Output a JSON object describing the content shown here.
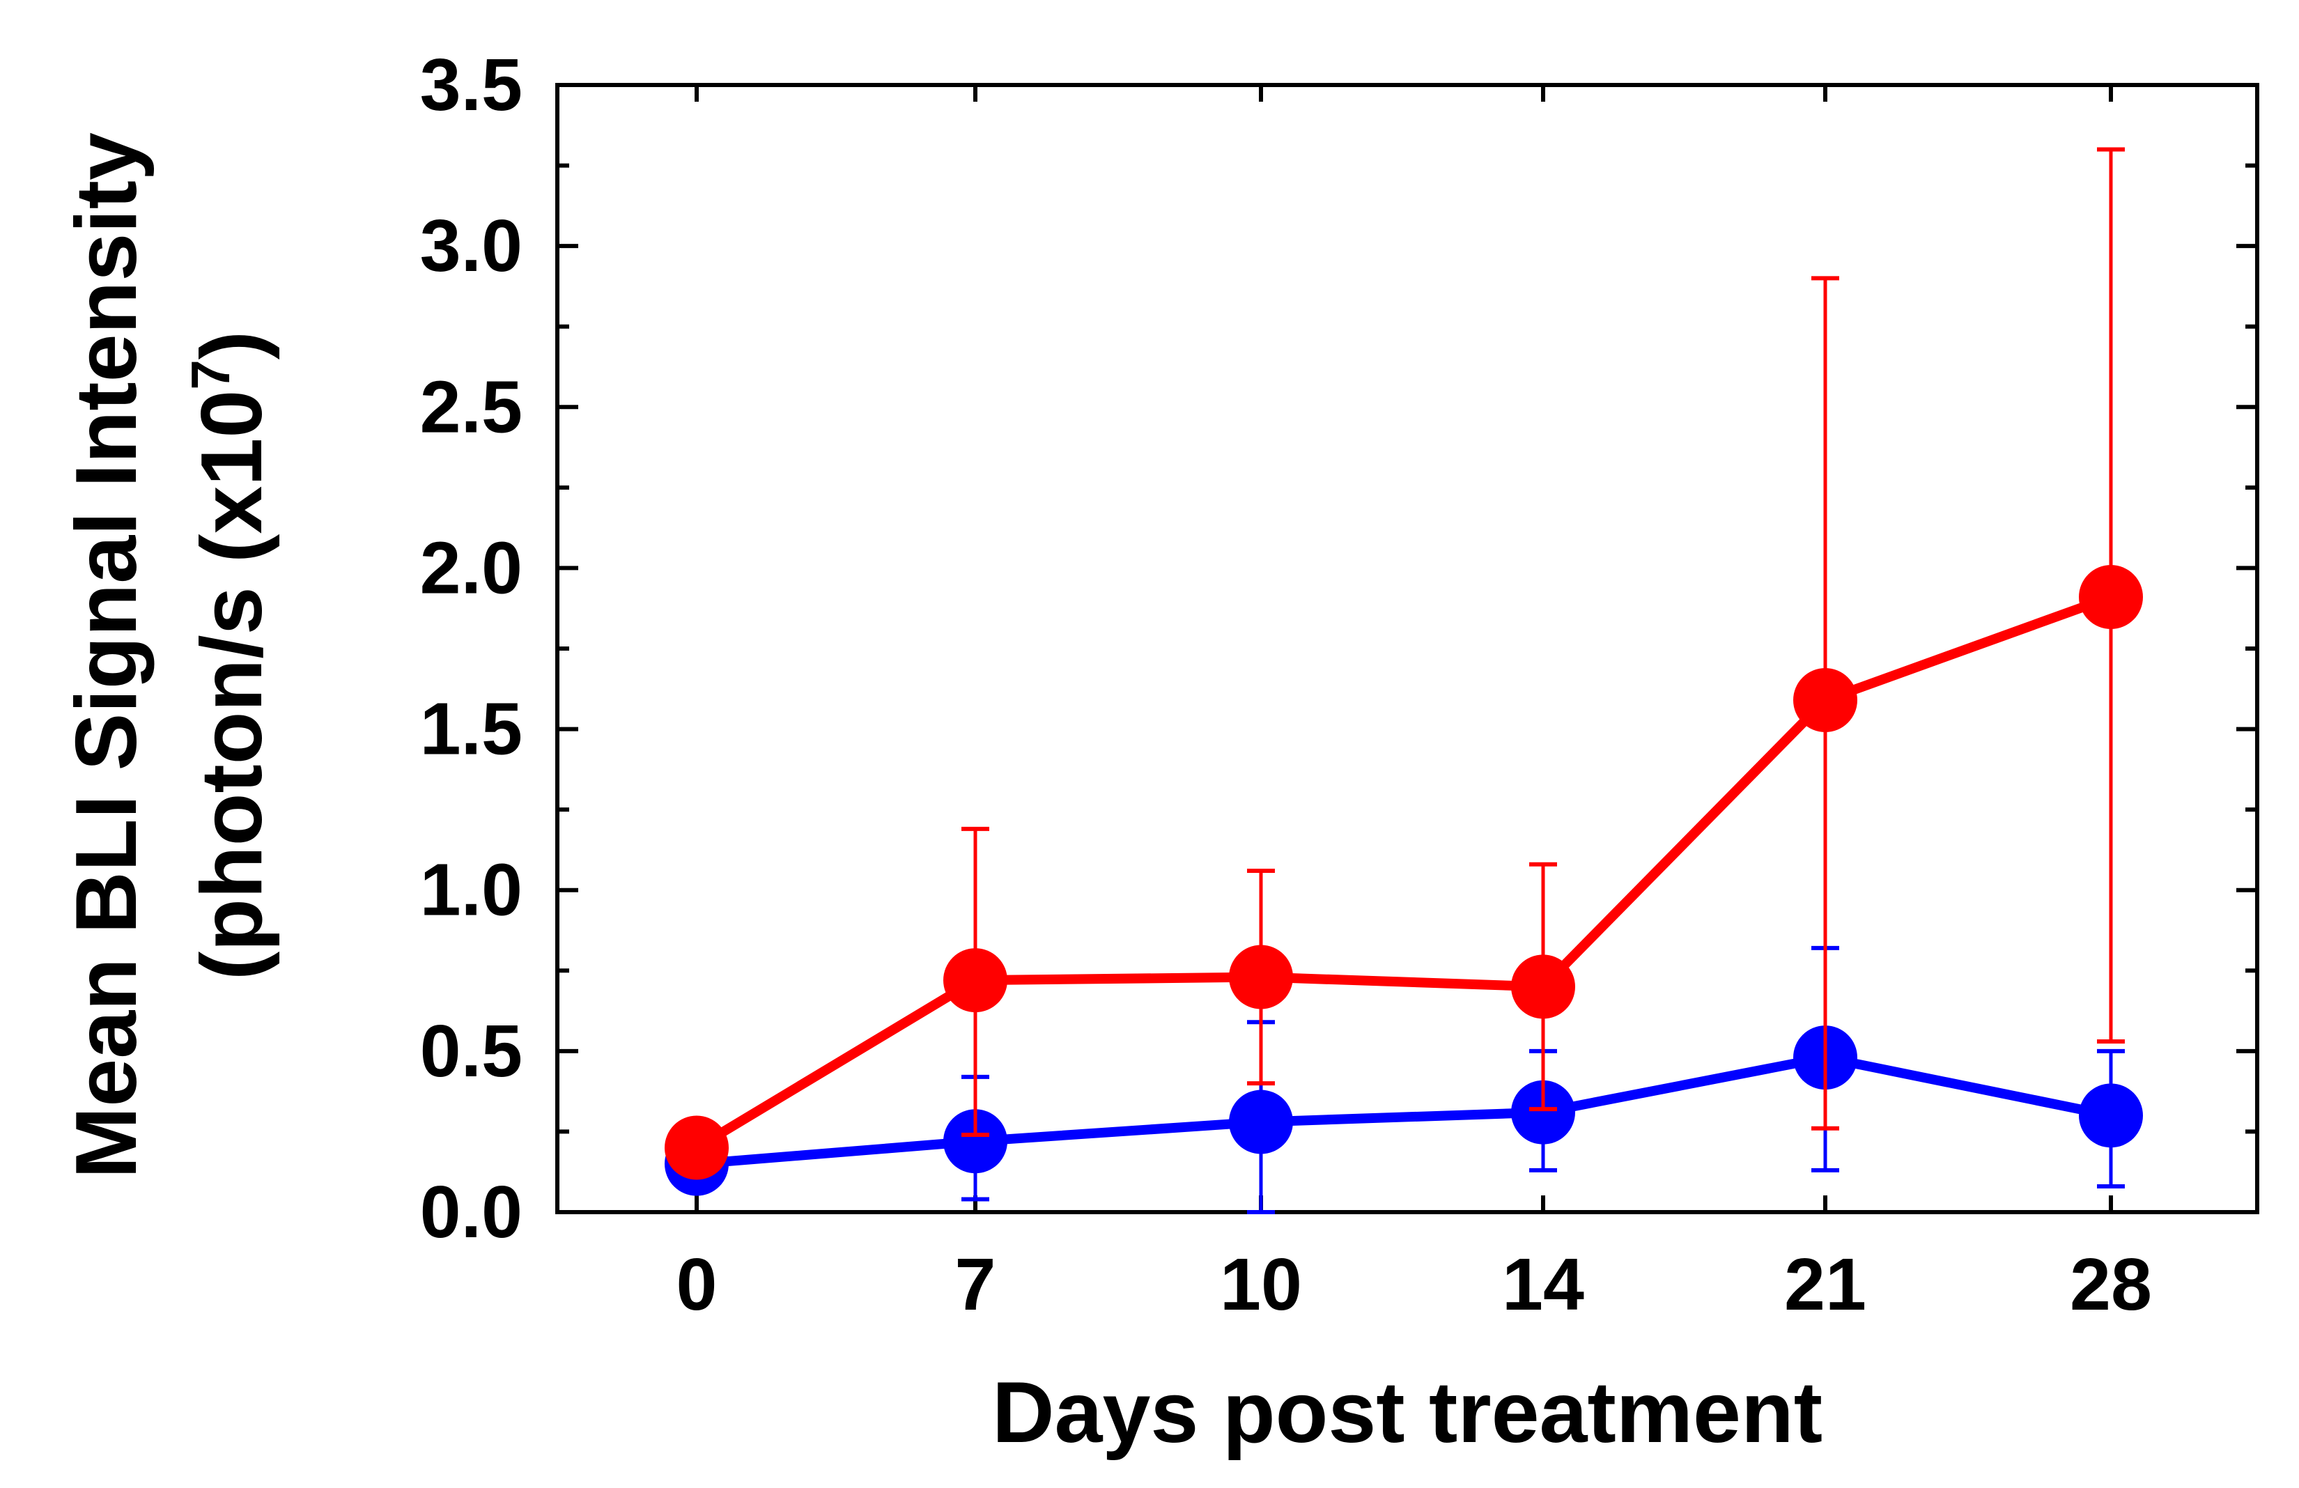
{
  "chart_data": {
    "type": "line",
    "title": "",
    "xlabel": "Days post treatment",
    "ylabel_line1": "Mean BLI Signal Intensity",
    "ylabel_line2_prefix": "(photon/s (x10",
    "ylabel_line2_exponent": "7",
    "ylabel_line2_suffix": ")",
    "categories": [
      "0",
      "7",
      "10",
      "14",
      "21",
      "28"
    ],
    "ylim": [
      0,
      3.5
    ],
    "y_major_ticks": [
      0.0,
      0.5,
      1.0,
      1.5,
      2.0,
      2.5,
      3.0,
      3.5
    ],
    "y_tick_labels": [
      "0.0",
      "0.5",
      "1.0",
      "1.5",
      "2.0",
      "2.5",
      "3.0",
      "3.5"
    ],
    "y_minor_step": 0.25,
    "grid": false,
    "series": [
      {
        "name": "blue series",
        "color": "#0000ff",
        "values": [
          0.15,
          0.22,
          0.28,
          0.31,
          0.48,
          0.3
        ],
        "error_low": [
          0.15,
          0.04,
          0.0,
          0.13,
          0.13,
          0.08
        ],
        "error_high": [
          0.15,
          0.42,
          0.59,
          0.5,
          0.82,
          0.5
        ]
      },
      {
        "name": "red series",
        "color": "#ff0000",
        "values": [
          0.2,
          0.72,
          0.73,
          0.7,
          1.59,
          1.91
        ],
        "error_low": [
          0.2,
          0.24,
          0.4,
          0.32,
          0.26,
          0.53
        ],
        "error_high": [
          0.2,
          1.19,
          1.06,
          1.08,
          2.9,
          3.3
        ]
      }
    ]
  }
}
